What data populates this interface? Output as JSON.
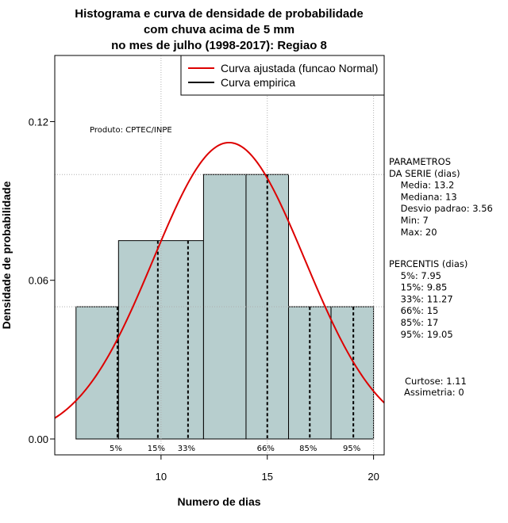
{
  "chart_data": {
    "type": "histogram",
    "title": [
      "Histograma e curva de densidade de probabilidade",
      "com chuva acima de 5 mm",
      "no mes de julho (1998-2017): Regiao 8"
    ],
    "xlabel": "Numero de dias",
    "ylabel": "Densidade de probabilidade",
    "xlim": [
      5,
      20.5
    ],
    "ylim": [
      -0.006,
      0.145
    ],
    "x_ticks": [
      10,
      15,
      20
    ],
    "y_ticks": [
      0.0,
      0.06,
      0.12
    ],
    "x_tick_labels": [
      "10",
      "15",
      "20"
    ],
    "y_tick_labels": [
      "0.00",
      "0.06",
      "0.12"
    ],
    "bins": [
      {
        "x0": 6,
        "x1": 8,
        "density": 0.05
      },
      {
        "x0": 8,
        "x1": 12,
        "density": 0.075
      },
      {
        "x0": 12,
        "x1": 14,
        "density": 0.1
      },
      {
        "x0": 14,
        "x1": 16,
        "density": 0.1
      },
      {
        "x0": 16,
        "x1": 18,
        "density": 0.05
      },
      {
        "x0": 18,
        "x1": 20,
        "density": 0.05
      }
    ],
    "bar_color": "#b7cece",
    "curve_color": "#dd0000",
    "normal_fit": {
      "mean": 13.2,
      "sd": 3.56
    },
    "gridlines_y": [
      0.1,
      0.05
    ],
    "gridlines_x": [
      10,
      15,
      20
    ],
    "percentile_lines": [
      {
        "label": "5%",
        "x": 7.95
      },
      {
        "label": "15%",
        "x": 9.85
      },
      {
        "label": "33%",
        "x": 11.27
      },
      {
        "label": "66%",
        "x": 15
      },
      {
        "label": "85%",
        "x": 17
      },
      {
        "label": "95%",
        "x": 19.05
      }
    ],
    "legend": [
      {
        "name": "Curva ajustada (funcao Normal)",
        "color": "#dd0000"
      },
      {
        "name": "Curva empirica",
        "color": "#000000"
      }
    ],
    "legend_position": "top-right",
    "annotation": "Produto: CPTEC/INPE"
  },
  "side_panel": {
    "parametros_lines": [
      "PARAMETROS",
      "DA SERIE (dias)",
      "  Media: 13.2",
      "  Mediana: 13",
      "  Desvio padrao: 3.56",
      "  Min: 7",
      "  Max: 20"
    ],
    "percentis_lines": [
      "PERCENTIS (dias)",
      "  5%: 7.95",
      "  15%: 9.85",
      "  33%: 11.27",
      "  66%: 15",
      "  85%: 17",
      "  95%: 19.05"
    ],
    "shape_lines": [
      "Curtose: 1.11",
      "Assimetria: 0"
    ]
  }
}
